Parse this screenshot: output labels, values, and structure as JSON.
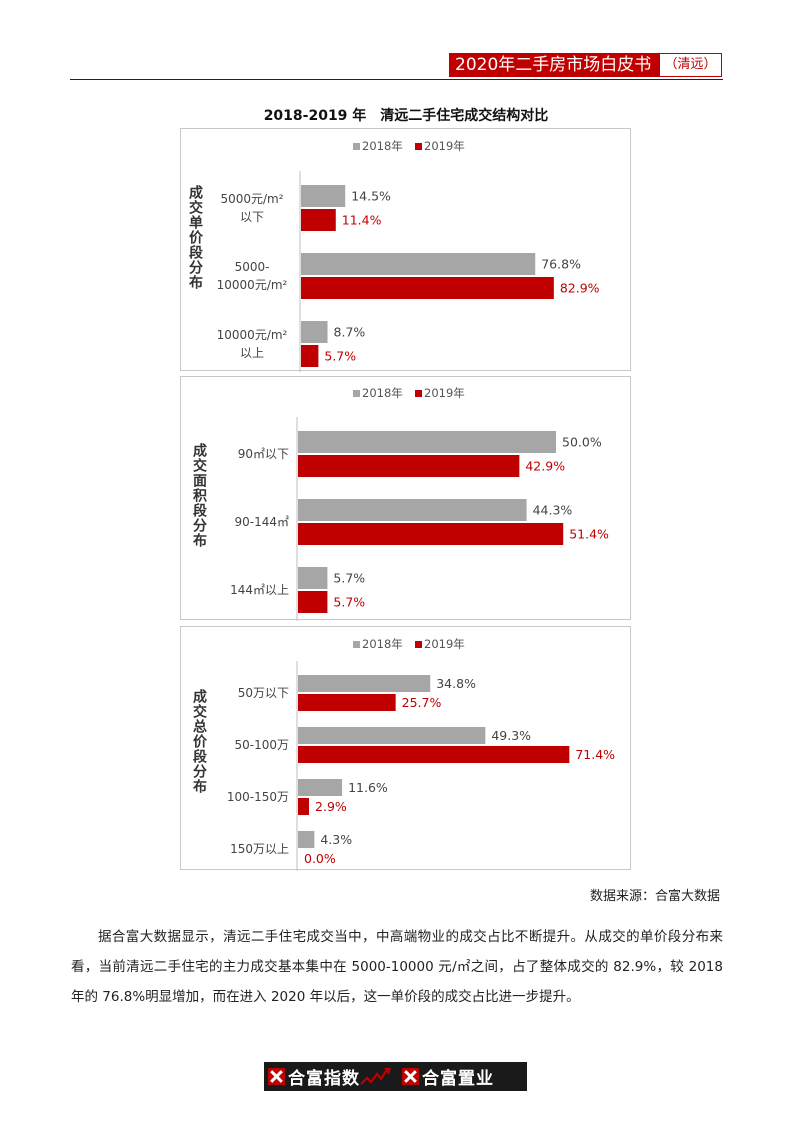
{
  "header": {
    "title": "2020年二手房市场白皮书",
    "city": "（清远）"
  },
  "figure_title": "2018-2019 年　清远二手住宅成交结构对比",
  "legend": {
    "series_2018": "2018年",
    "series_2019": "2019年"
  },
  "colors": {
    "accent": "#c00000",
    "series_2018": "#a6a6a6",
    "series_2019": "#c00000"
  },
  "chart_data": [
    {
      "type": "bar",
      "orientation": "horizontal",
      "ylabel": "成交单价段分布",
      "categories": [
        [
          "5000元/m²",
          "以下"
        ],
        [
          "5000-",
          "10000元/m²"
        ],
        [
          "10000元/m²",
          "以上"
        ]
      ],
      "series": [
        {
          "name": "2018年",
          "values": [
            14.5,
            76.8,
            8.7
          ]
        },
        {
          "name": "2019年",
          "values": [
            11.4,
            82.9,
            5.7
          ]
        }
      ],
      "value_suffix": "%",
      "legend_position": "top",
      "grid": false
    },
    {
      "type": "bar",
      "orientation": "horizontal",
      "ylabel": "成交面积段分布",
      "categories": [
        [
          "90㎡以下"
        ],
        [
          "90-144㎡"
        ],
        [
          "144㎡以上"
        ]
      ],
      "series": [
        {
          "name": "2018年",
          "values": [
            50.0,
            44.3,
            5.7
          ]
        },
        {
          "name": "2019年",
          "values": [
            42.9,
            51.4,
            5.7
          ]
        }
      ],
      "value_suffix": "%",
      "legend_position": "top",
      "grid": false
    },
    {
      "type": "bar",
      "orientation": "horizontal",
      "ylabel": "成交总价段分布",
      "categories": [
        [
          "50万以下"
        ],
        [
          "50-100万"
        ],
        [
          "100-150万"
        ],
        [
          "150万以上"
        ]
      ],
      "series": [
        {
          "name": "2018年",
          "values": [
            34.8,
            49.3,
            11.6,
            4.3
          ]
        },
        {
          "name": "2019年",
          "values": [
            25.7,
            71.4,
            2.9,
            0.0
          ]
        }
      ],
      "value_suffix": "%",
      "legend_position": "top",
      "grid": false
    }
  ],
  "source": "数据来源：合富大数据",
  "paragraph": "据合富大数据显示，清远二手住宅成交当中，中高端物业的成交占比不断提升。从成交的单价段分布来看，当前清远二手住宅的主力成交基本集中在 5000-10000 元/㎡之间，占了整体成交的 82.9%，较 2018 年的 76.8%明显增加，而在进入 2020 年以后，这一单价段的成交占比进一步提升。",
  "footer": {
    "brand_index": "合富指数",
    "brand_realty": "合富置业"
  }
}
